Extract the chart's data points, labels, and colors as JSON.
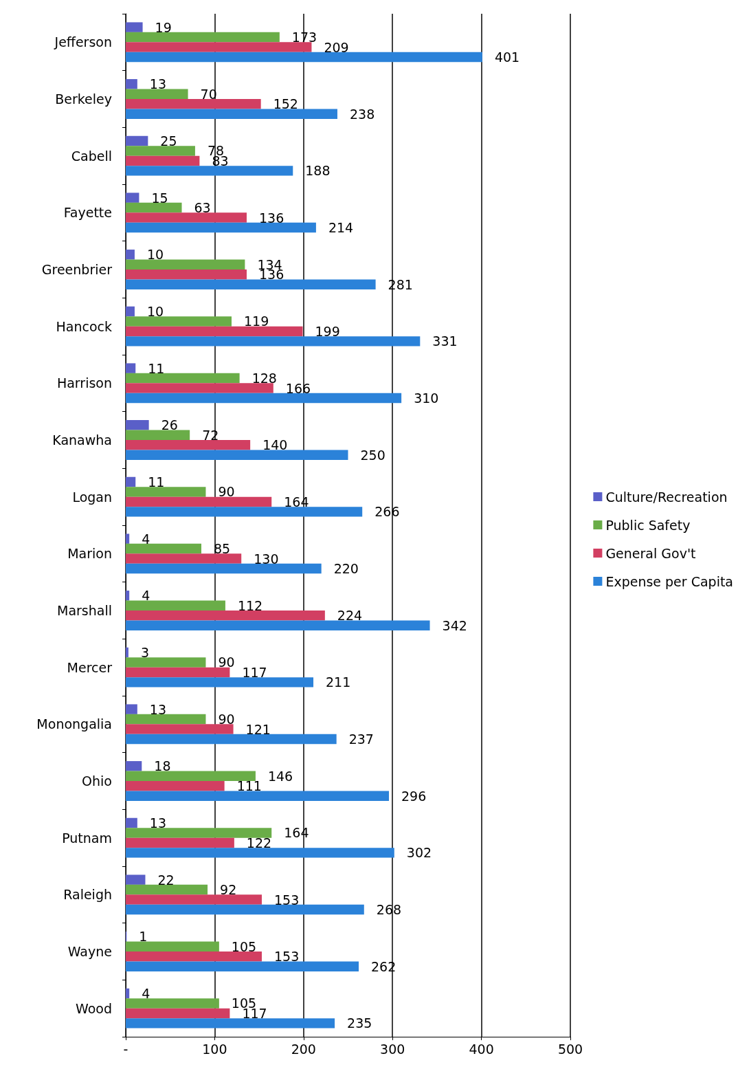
{
  "chart_data": {
    "type": "bar",
    "orientation": "horizontal",
    "categories": [
      "Jefferson",
      "Berkeley",
      "Cabell",
      "Fayette",
      "Greenbrier",
      "Hancock",
      "Harrison",
      "Kanawha",
      "Logan",
      "Marion",
      "Marshall",
      "Mercer",
      "Monongalia",
      "Ohio",
      "Putnam",
      "Raleigh",
      "Wayne",
      "Wood"
    ],
    "series": [
      {
        "name": "Culture/Recreation",
        "color": "#5a5fc8",
        "values": [
          19,
          13,
          25,
          15,
          10,
          10,
          11,
          26,
          11,
          4,
          4,
          3,
          13,
          18,
          13,
          22,
          1,
          4
        ]
      },
      {
        "name": "Public Safety",
        "color": "#6aad48",
        "values": [
          173,
          70,
          78,
          63,
          134,
          119,
          128,
          72,
          90,
          85,
          112,
          90,
          90,
          146,
          164,
          92,
          105,
          105
        ]
      },
      {
        "name": "General Gov't",
        "color": "#d23f62",
        "values": [
          209,
          152,
          83,
          136,
          136,
          199,
          166,
          140,
          164,
          130,
          224,
          117,
          121,
          111,
          122,
          153,
          153,
          117
        ]
      },
      {
        "name": "Expense per Capita",
        "color": "#2b82d9",
        "values": [
          401,
          238,
          188,
          214,
          281,
          331,
          310,
          250,
          266,
          220,
          342,
          211,
          237,
          296,
          302,
          268,
          262,
          235
        ]
      }
    ],
    "xlim": [
      0,
      500
    ],
    "xticks": [
      {
        "value": 0,
        "label": "-"
      },
      100,
      200,
      300,
      400,
      500
    ],
    "grid": "x",
    "legend": "right",
    "data_labels": true
  }
}
